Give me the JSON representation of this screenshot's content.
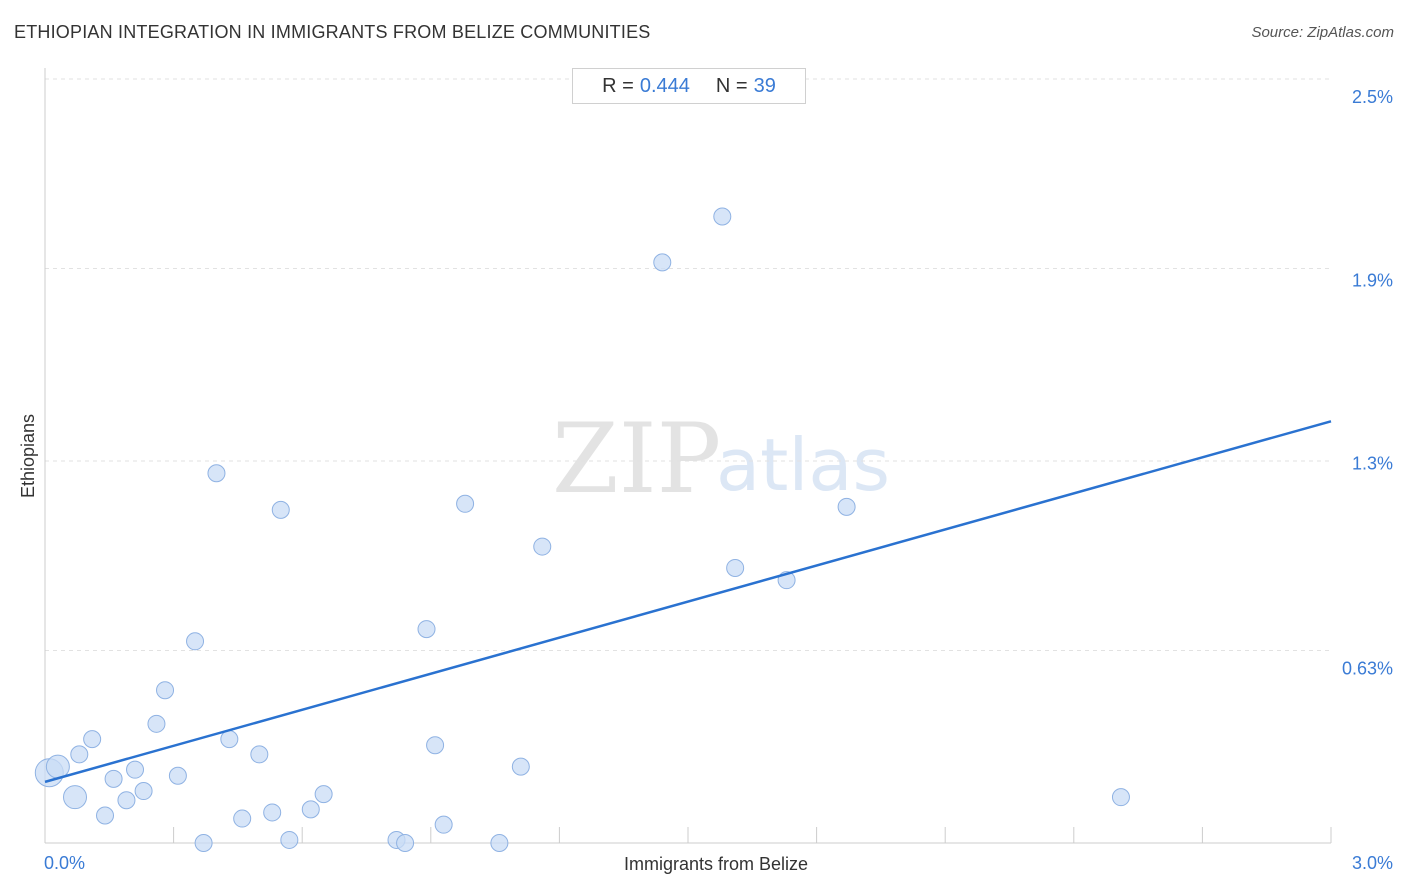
{
  "title": "ETHIOPIAN INTEGRATION IN IMMIGRANTS FROM BELIZE COMMUNITIES",
  "source": "Source: ZipAtlas.com",
  "stats": {
    "r_label": "R =",
    "r_value": "0.444",
    "n_label": "N =",
    "n_value": "39"
  },
  "watermark": {
    "zip": "ZIP",
    "atlas": "atlas"
  },
  "colors": {
    "point_fill": "#c9dcf5",
    "point_stroke": "#8fb2e3",
    "trend": "#2a72d0",
    "grid": "#e2e2e2",
    "axis": "#cccccc",
    "tick_text": "#3a7bd5"
  },
  "chart_data": {
    "type": "scatter",
    "xlabel": "Immigrants from Belize",
    "ylabel": "Ethiopians",
    "xlim": [
      0.0,
      3.0
    ],
    "ylim": [
      0.0,
      2.5
    ],
    "x_tick_labels": [
      {
        "value": 0.0,
        "label": "0.0%"
      },
      {
        "value": 3.0,
        "label": "3.0%"
      }
    ],
    "y_tick_labels": [
      {
        "value": 0.63,
        "label": "0.63%"
      },
      {
        "value": 1.3,
        "label": "1.3%"
      },
      {
        "value": 1.9,
        "label": "1.9%"
      },
      {
        "value": 2.5,
        "label": "2.5%"
      }
    ],
    "y_gridlines": [
      0.63,
      1.25,
      1.88,
      2.5
    ],
    "x_minor_ticks": [
      0.3,
      0.6,
      0.9,
      1.2,
      1.5,
      1.8,
      2.1,
      2.4,
      2.7,
      3.0
    ],
    "trend_line": {
      "x": [
        0.0,
        3.0
      ],
      "y": [
        0.2,
        1.38
      ]
    },
    "points": [
      {
        "x": 0.01,
        "y": 0.23,
        "size": 3
      },
      {
        "x": 0.03,
        "y": 0.25,
        "size": 2
      },
      {
        "x": 0.07,
        "y": 0.15,
        "size": 2
      },
      {
        "x": 0.08,
        "y": 0.29,
        "size": 1
      },
      {
        "x": 0.11,
        "y": 0.34,
        "size": 1
      },
      {
        "x": 0.14,
        "y": 0.09,
        "size": 1
      },
      {
        "x": 0.16,
        "y": 0.21,
        "size": 1
      },
      {
        "x": 0.19,
        "y": 0.14,
        "size": 1
      },
      {
        "x": 0.21,
        "y": 0.24,
        "size": 1
      },
      {
        "x": 0.23,
        "y": 0.17,
        "size": 1
      },
      {
        "x": 0.26,
        "y": 0.39,
        "size": 1
      },
      {
        "x": 0.28,
        "y": 0.5,
        "size": 1
      },
      {
        "x": 0.31,
        "y": 0.22,
        "size": 1
      },
      {
        "x": 0.35,
        "y": 0.66,
        "size": 1
      },
      {
        "x": 0.37,
        "y": 0.0,
        "size": 1
      },
      {
        "x": 0.4,
        "y": 1.21,
        "size": 1
      },
      {
        "x": 0.43,
        "y": 0.34,
        "size": 1
      },
      {
        "x": 0.46,
        "y": 0.08,
        "size": 1
      },
      {
        "x": 0.5,
        "y": 0.29,
        "size": 1
      },
      {
        "x": 0.53,
        "y": 0.1,
        "size": 1
      },
      {
        "x": 0.55,
        "y": 1.09,
        "size": 1
      },
      {
        "x": 0.57,
        "y": 0.01,
        "size": 1
      },
      {
        "x": 0.62,
        "y": 0.11,
        "size": 1
      },
      {
        "x": 0.65,
        "y": 0.16,
        "size": 1
      },
      {
        "x": 0.82,
        "y": 0.01,
        "size": 1
      },
      {
        "x": 0.84,
        "y": 0.0,
        "size": 1
      },
      {
        "x": 0.89,
        "y": 0.7,
        "size": 1
      },
      {
        "x": 0.91,
        "y": 0.32,
        "size": 1
      },
      {
        "x": 0.93,
        "y": 0.06,
        "size": 1
      },
      {
        "x": 0.98,
        "y": 1.11,
        "size": 1
      },
      {
        "x": 1.06,
        "y": 0.0,
        "size": 1
      },
      {
        "x": 1.11,
        "y": 0.25,
        "size": 1
      },
      {
        "x": 1.16,
        "y": 0.97,
        "size": 1
      },
      {
        "x": 1.44,
        "y": 1.9,
        "size": 1
      },
      {
        "x": 1.58,
        "y": 2.05,
        "size": 1
      },
      {
        "x": 1.61,
        "y": 0.9,
        "size": 1
      },
      {
        "x": 1.73,
        "y": 0.86,
        "size": 1
      },
      {
        "x": 1.87,
        "y": 1.1,
        "size": 1
      },
      {
        "x": 2.51,
        "y": 0.15,
        "size": 1
      }
    ]
  }
}
